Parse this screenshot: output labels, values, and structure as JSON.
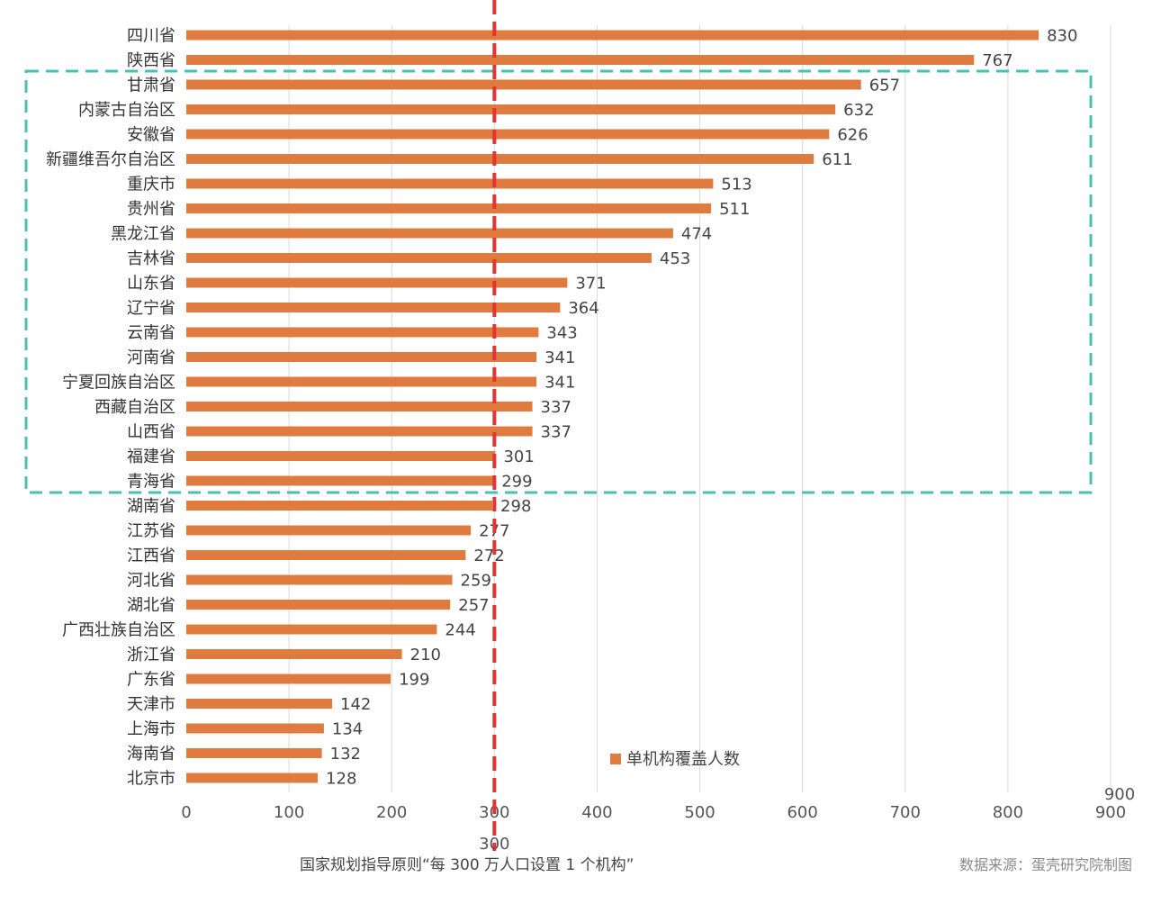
{
  "chart_data": {
    "type": "bar",
    "orientation": "horizontal",
    "categories": [
      "四川省",
      "陕西省",
      "甘肃省",
      "内蒙古自治区",
      "安徽省",
      "新疆维吾尔自治区",
      "重庆市",
      "贵州省",
      "黑龙江省",
      "吉林省",
      "山东省",
      "辽宁省",
      "云南省",
      "河南省",
      "宁夏回族自治区",
      "西藏自治区",
      "山西省",
      "福建省",
      "青海省",
      "湖南省",
      "江苏省",
      "江西省",
      "河北省",
      "湖北省",
      "广西壮族自治区",
      "浙江省",
      "广东省",
      "天津市",
      "上海市",
      "海南省",
      "北京市"
    ],
    "series": [
      {
        "name": "单机构覆盖人数",
        "values": [
          830,
          767,
          657,
          632,
          626,
          611,
          513,
          511,
          474,
          453,
          371,
          364,
          343,
          341,
          341,
          337,
          337,
          301,
          299,
          298,
          277,
          272,
          259,
          257,
          244,
          210,
          199,
          142,
          134,
          132,
          128
        ]
      }
    ],
    "xlim": [
      0,
      900
    ],
    "xticks": [
      "0",
      "100",
      "200",
      "300",
      "400",
      "500",
      "600",
      "700",
      "800",
      "900"
    ],
    "grid": true,
    "legend_position": "bottom-center",
    "colors": {
      "bar": "#e07b3f",
      "reference_line": "#e53333",
      "highlight_box": "#4bbfb3",
      "grid": "#d9d9d9"
    },
    "reference_line": {
      "value": 300,
      "label": "300",
      "style": "dashed"
    },
    "extra_tick_label": "900",
    "highlight_box": {
      "from_category": "甘肃省",
      "to_category": "青海省",
      "style": "dashed"
    },
    "annotation": "国家规划指导原则“每 300 万人口设置 1 个机构”",
    "source": "数据来源：蛋壳研究院制图"
  }
}
